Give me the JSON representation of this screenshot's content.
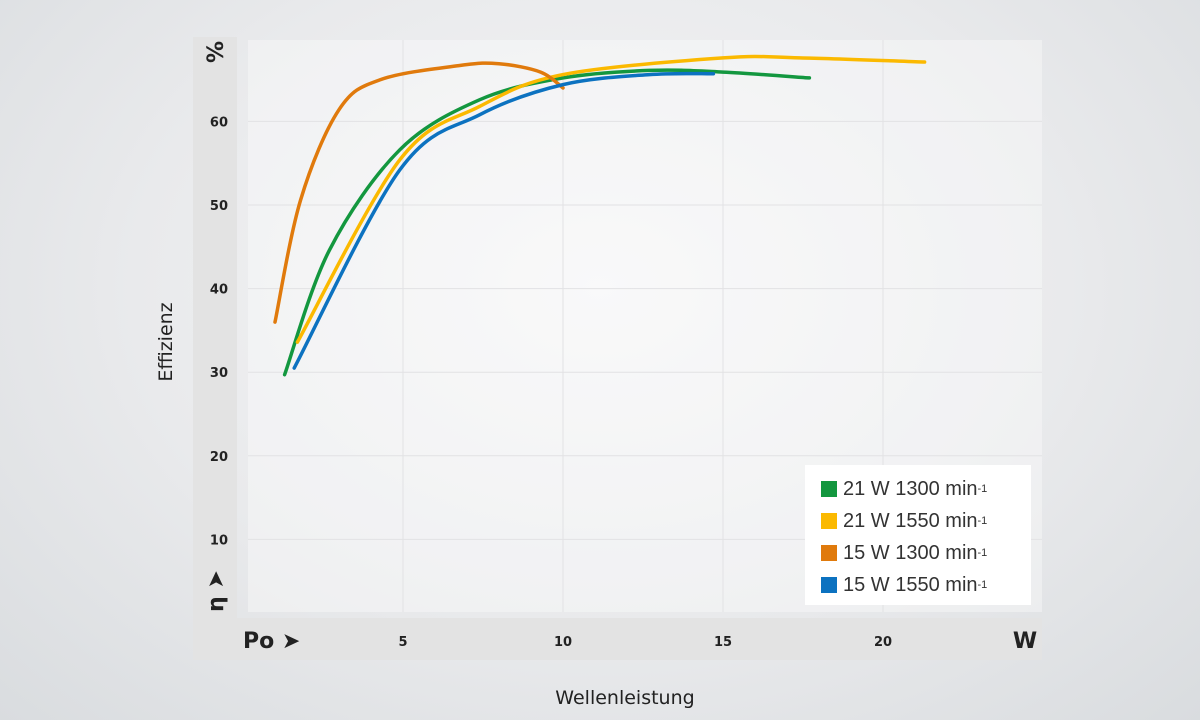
{
  "chart_data": {
    "type": "line",
    "xlabel": "Wellenleistung",
    "ylabel": "Effizienz",
    "x_unit": "W",
    "y_unit": "%",
    "x_origin_label": "Po ➤",
    "y_origin_label": "η ➤",
    "xlim": [
      0,
      25
    ],
    "ylim": [
      0,
      70
    ],
    "x_ticks": [
      5,
      10,
      15,
      20
    ],
    "y_ticks": [
      10,
      20,
      30,
      40,
      50,
      60
    ],
    "grid": true,
    "legend_position": "bottom-right",
    "series": [
      {
        "name": "21 W 1300 min",
        "sup": "-1",
        "color": "#13973f",
        "points": [
          [
            1.3,
            29.7
          ],
          [
            2.7,
            44.6
          ],
          [
            4.9,
            56.6
          ],
          [
            7.4,
            62.6
          ],
          [
            10,
            65.2
          ],
          [
            12.7,
            66.1
          ],
          [
            15,
            65.9
          ],
          [
            17.7,
            65.2
          ]
        ]
      },
      {
        "name": "21 W 1550 min",
        "sup": "-1",
        "color": "#fbb900",
        "points": [
          [
            1.7,
            33.6
          ],
          [
            4.9,
            55.4
          ],
          [
            7.4,
            61.8
          ],
          [
            10,
            65.6
          ],
          [
            15,
            67.6
          ],
          [
            17.4,
            67.6
          ],
          [
            21.3,
            67.1
          ]
        ]
      },
      {
        "name": "15 W 1300 min",
        "sup": "-1",
        "color": "#e07a0c",
        "points": [
          [
            1.0,
            36
          ],
          [
            1.8,
            50.6
          ],
          [
            3.0,
            61.4
          ],
          [
            4.3,
            65
          ],
          [
            6.8,
            66.7
          ],
          [
            8.0,
            66.9
          ],
          [
            9.3,
            65.9
          ],
          [
            10,
            64
          ]
        ]
      },
      {
        "name": "15 W 1550 min",
        "sup": "-1",
        "color": "#0c72c0",
        "points": [
          [
            1.6,
            30.5
          ],
          [
            4.9,
            54.2
          ],
          [
            7.4,
            60.8
          ],
          [
            10,
            64.4
          ],
          [
            12.7,
            65.6
          ],
          [
            14.7,
            65.7
          ]
        ]
      }
    ]
  }
}
